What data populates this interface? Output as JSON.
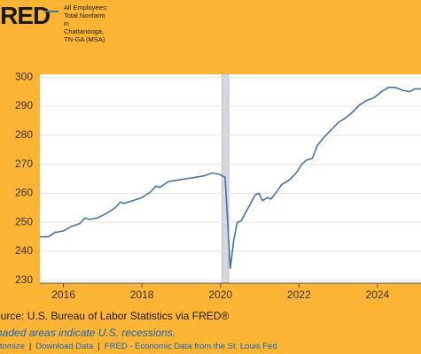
{
  "chart_data": {
    "type": "line",
    "logo": "FRED",
    "series": [
      {
        "name": "All Employees: Total Nonfarm in Chattanooga, TN-GA (MSA)",
        "color": "#4572a7",
        "x": [
          2015.4,
          2015.62,
          2015.78,
          2016.0,
          2016.19,
          2016.41,
          2016.55,
          2016.66,
          2016.86,
          2017.09,
          2017.32,
          2017.45,
          2017.54,
          2017.77,
          2018.0,
          2018.22,
          2018.36,
          2018.45,
          2018.67,
          2018.9,
          2019.12,
          2019.35,
          2019.58,
          2019.8,
          2019.98,
          2020.12,
          2020.25,
          2020.34,
          2020.43,
          2020.53,
          2020.71,
          2020.89,
          2020.98,
          2021.07,
          2021.2,
          2021.29,
          2021.43,
          2021.56,
          2021.75,
          2021.93,
          2022.07,
          2022.2,
          2022.34,
          2022.47,
          2022.65,
          2022.83,
          2023.01,
          2023.19,
          2023.37,
          2023.55,
          2023.73,
          2023.92,
          2024.1,
          2024.28,
          2024.46,
          2024.64,
          2024.82,
          2024.95,
          2025.11
        ],
        "values": [
          245,
          245,
          246.5,
          247,
          248.5,
          249.5,
          251.5,
          251,
          251.5,
          253,
          255,
          257,
          256.5,
          257.5,
          258.5,
          260.5,
          262.5,
          262,
          264,
          264.5,
          265,
          265.5,
          266,
          267,
          266.5,
          265.5,
          234,
          244,
          250,
          250.5,
          255,
          259.5,
          260,
          257.5,
          258.5,
          258,
          260.5,
          263,
          264.5,
          267,
          270,
          271.5,
          272,
          276.5,
          279.5,
          282,
          284.5,
          286,
          288,
          290.5,
          292,
          293,
          295,
          296.5,
          296.5,
          295.5,
          295,
          296,
          296
        ]
      }
    ],
    "recessions": [
      {
        "start": 2020.04,
        "end": 2020.21
      }
    ],
    "xlim": [
      2015.4,
      2025.11
    ],
    "xticks": [
      2016,
      2018,
      2020,
      2022,
      2024
    ],
    "ylim": [
      229,
      301
    ],
    "yticks": [
      230,
      240,
      250,
      260,
      270,
      280,
      290,
      300
    ],
    "grid": true,
    "source": "Source: U.S. Bureau of Labor Statistics via FRED®",
    "note": "Shaded areas indicate U.S. recessions.",
    "links": [
      "Customize",
      "Download Data",
      "FRED - Economic Data from the St. Louis Fed"
    ]
  }
}
